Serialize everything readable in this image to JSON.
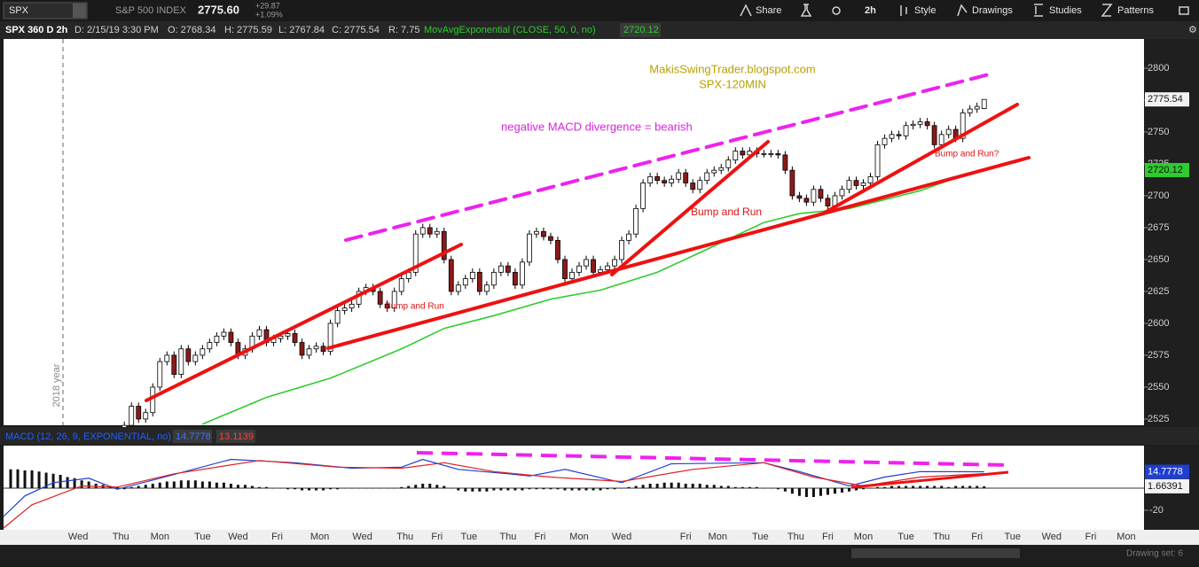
{
  "toolbar": {
    "symbol": "SPX",
    "name": "S&P 500 INDEX",
    "last": "2775.60",
    "change": "+29.87",
    "change_pct": "+1.09%",
    "buttons": [
      "Share",
      "2h",
      "Style",
      "Drawings",
      "Studies",
      "Patterns"
    ]
  },
  "info": {
    "title": "SPX 360 D 2h",
    "date": "D: 2/15/19 3:30 PM",
    "open": "O: 2768.34",
    "high": "H: 2775.59",
    "low": "L: 2767.84",
    "close": "C: 2775.54",
    "range": "R: 7.75",
    "study": "MovAvgExponential (CLOSE, 50, 0, no)",
    "study_value": "2720.12"
  },
  "chart_data": [
    {
      "type": "candlestick",
      "separator_label": "2018 year",
      "annotations": [
        "MakisSwingTrader.blogspot.com",
        "SPX-120MIN",
        "negative MACD divergence = bearish",
        "Bump and Run",
        "Bump and Run",
        "Bump and Run?"
      ],
      "up_color": "#ffffff",
      "down_color": "#8b1a1a",
      "xlim": [
        -17,
        143.5
      ],
      "xticks": [
        {
          "value": -6.5,
          "label": "Wed"
        },
        {
          "value": -0.5,
          "label": "Thu"
        },
        {
          "value": 5,
          "label": "Mon"
        },
        {
          "value": 11,
          "label": "Tue"
        },
        {
          "value": 16,
          "label": "Wed"
        },
        {
          "value": 21.5,
          "label": "Fri"
        },
        {
          "value": 27.5,
          "label": "Mon"
        },
        {
          "value": 33.5,
          "label": "Wed"
        },
        {
          "value": 39.5,
          "label": "Thu"
        },
        {
          "value": 44,
          "label": "Fri"
        },
        {
          "value": 48.5,
          "label": "Tue"
        },
        {
          "value": 54,
          "label": "Thu"
        },
        {
          "value": 58.5,
          "label": "Fri"
        },
        {
          "value": 64,
          "label": "Mon"
        },
        {
          "value": 70,
          "label": "Wed"
        },
        {
          "value": 79,
          "label": "Fri"
        },
        {
          "value": 83.5,
          "label": "Mon"
        },
        {
          "value": 89.5,
          "label": "Tue"
        },
        {
          "value": 94.5,
          "label": "Thu"
        },
        {
          "value": 99,
          "label": "Fri"
        },
        {
          "value": 104,
          "label": "Mon"
        },
        {
          "value": 110,
          "label": "Tue"
        },
        {
          "value": 115,
          "label": "Thu"
        },
        {
          "value": 120,
          "label": "Fri"
        },
        {
          "value": 125,
          "label": "Tue"
        },
        {
          "value": 130.5,
          "label": "Wed"
        },
        {
          "value": 136,
          "label": "Fri"
        },
        {
          "value": 141,
          "label": "Mon"
        }
      ],
      "ylim": [
        2520.1,
        2822.9
      ],
      "yticks": [
        2525,
        2550,
        2575,
        2600,
        2625,
        2650,
        2675,
        2700,
        2725,
        2750,
        2775,
        2800
      ],
      "last_label": {
        "value": 2775.54,
        "label": "2775.54"
      },
      "ema_label": {
        "value": 2720.12,
        "label": "2720.12"
      },
      "candles": [
        [
          2515,
          2523,
          2512,
          2520
        ],
        [
          2520,
          2538,
          2517,
          2535
        ],
        [
          2535,
          2538,
          2522,
          2525
        ],
        [
          2525,
          2533,
          2522,
          2530
        ],
        [
          2530,
          2553,
          2527,
          2550
        ],
        [
          2550,
          2573,
          2547,
          2570
        ],
        [
          2570,
          2578,
          2567,
          2575
        ],
        [
          2575,
          2578,
          2557,
          2560
        ],
        [
          2560,
          2583,
          2557,
          2580
        ],
        [
          2580,
          2583,
          2567,
          2570
        ],
        [
          2570,
          2578,
          2567,
          2575
        ],
        [
          2575,
          2583,
          2572,
          2580
        ],
        [
          2580,
          2588,
          2577,
          2585
        ],
        [
          2585,
          2593,
          2582,
          2590
        ],
        [
          2590,
          2596,
          2587,
          2593
        ],
        [
          2593,
          2596,
          2582,
          2585
        ],
        [
          2585,
          2588,
          2572,
          2575
        ],
        [
          2575,
          2583,
          2572,
          2580
        ],
        [
          2580,
          2593,
          2577,
          2590
        ],
        [
          2590,
          2598,
          2587,
          2595
        ],
        [
          2595,
          2598,
          2582,
          2585
        ],
        [
          2585,
          2591,
          2582,
          2588
        ],
        [
          2588,
          2593,
          2585,
          2590
        ],
        [
          2590,
          2595,
          2587,
          2592
        ],
        [
          2592,
          2595,
          2582,
          2585
        ],
        [
          2585,
          2588,
          2572,
          2575
        ],
        [
          2575,
          2583,
          2572,
          2580
        ],
        [
          2580,
          2585,
          2577,
          2582
        ],
        [
          2582,
          2585,
          2575,
          2578
        ],
        [
          2578,
          2603,
          2575,
          2600
        ],
        [
          2600,
          2613,
          2597,
          2610
        ],
        [
          2610,
          2615,
          2607,
          2612
        ],
        [
          2612,
          2618,
          2609,
          2615
        ],
        [
          2615,
          2628,
          2612,
          2625
        ],
        [
          2625,
          2631,
          2622,
          2628
        ],
        [
          2628,
          2631,
          2622,
          2625
        ],
        [
          2625,
          2628,
          2612,
          2615
        ],
        [
          2615,
          2618,
          2609,
          2612
        ],
        [
          2612,
          2628,
          2609,
          2625
        ],
        [
          2625,
          2638,
          2622,
          2635
        ],
        [
          2635,
          2643,
          2632,
          2640
        ],
        [
          2640,
          2673,
          2637,
          2670
        ],
        [
          2670,
          2678,
          2667,
          2675
        ],
        [
          2675,
          2678,
          2667,
          2670
        ],
        [
          2670,
          2675,
          2667,
          2672
        ],
        [
          2672,
          2675,
          2647,
          2650
        ],
        [
          2650,
          2653,
          2622,
          2625
        ],
        [
          2625,
          2633,
          2622,
          2630
        ],
        [
          2630,
          2638,
          2627,
          2635
        ],
        [
          2635,
          2643,
          2632,
          2640
        ],
        [
          2640,
          2643,
          2622,
          2625
        ],
        [
          2625,
          2633,
          2622,
          2630
        ],
        [
          2630,
          2643,
          2627,
          2640
        ],
        [
          2640,
          2648,
          2637,
          2645
        ],
        [
          2645,
          2648,
          2637,
          2640
        ],
        [
          2640,
          2643,
          2627,
          2630
        ],
        [
          2630,
          2651,
          2627,
          2648
        ],
        [
          2648,
          2673,
          2645,
          2670
        ],
        [
          2670,
          2675,
          2667,
          2672
        ],
        [
          2672,
          2675,
          2665,
          2668
        ],
        [
          2668,
          2671,
          2662,
          2665
        ],
        [
          2665,
          2668,
          2647,
          2650
        ],
        [
          2650,
          2653,
          2632,
          2635
        ],
        [
          2635,
          2643,
          2632,
          2640
        ],
        [
          2640,
          2648,
          2637,
          2645
        ],
        [
          2645,
          2653,
          2642,
          2650
        ],
        [
          2650,
          2653,
          2637,
          2640
        ],
        [
          2640,
          2645,
          2637,
          2642
        ],
        [
          2642,
          2648,
          2639,
          2645
        ],
        [
          2645,
          2653,
          2642,
          2650
        ],
        [
          2650,
          2668,
          2647,
          2665
        ],
        [
          2665,
          2673,
          2662,
          2670
        ],
        [
          2670,
          2693,
          2667,
          2690
        ],
        [
          2690,
          2713,
          2687,
          2710
        ],
        [
          2710,
          2718,
          2707,
          2715
        ],
        [
          2715,
          2718,
          2709,
          2712
        ],
        [
          2712,
          2715,
          2707,
          2710
        ],
        [
          2710,
          2716,
          2707,
          2713
        ],
        [
          2713,
          2721,
          2710,
          2718
        ],
        [
          2718,
          2721,
          2707,
          2710
        ],
        [
          2710,
          2713,
          2702,
          2705
        ],
        [
          2705,
          2715,
          2702,
          2712
        ],
        [
          2712,
          2721,
          2709,
          2718
        ],
        [
          2718,
          2723,
          2715,
          2720
        ],
        [
          2720,
          2725,
          2717,
          2722
        ],
        [
          2722,
          2731,
          2719,
          2728
        ],
        [
          2728,
          2738,
          2725,
          2735
        ],
        [
          2735,
          2738,
          2729,
          2732
        ],
        [
          2732,
          2738,
          2729,
          2735
        ],
        [
          2735,
          2738,
          2730,
          2733
        ],
        [
          2733,
          2736,
          2730,
          2733
        ],
        [
          2733,
          2736,
          2730,
          2733
        ],
        [
          2733,
          2736,
          2729,
          2732
        ],
        [
          2732,
          2735,
          2717,
          2720
        ],
        [
          2720,
          2723,
          2697,
          2700
        ],
        [
          2700,
          2703,
          2695,
          2698
        ],
        [
          2698,
          2701,
          2692,
          2695
        ],
        [
          2695,
          2708,
          2692,
          2705
        ],
        [
          2705,
          2708,
          2695,
          2698
        ],
        [
          2698,
          2701,
          2689,
          2692
        ],
        [
          2692,
          2703,
          2689,
          2700
        ],
        [
          2700,
          2708,
          2697,
          2705
        ],
        [
          2705,
          2715,
          2702,
          2712
        ],
        [
          2712,
          2715,
          2705,
          2708
        ],
        [
          2708,
          2713,
          2705,
          2710
        ],
        [
          2710,
          2718,
          2707,
          2715
        ],
        [
          2715,
          2743,
          2712,
          2740
        ],
        [
          2740,
          2748,
          2737,
          2745
        ],
        [
          2745,
          2751,
          2742,
          2748
        ],
        [
          2748,
          2751,
          2744,
          2747
        ],
        [
          2747,
          2758,
          2744,
          2755
        ],
        [
          2755,
          2759,
          2752,
          2756
        ],
        [
          2756,
          2761,
          2753,
          2758
        ],
        [
          2758,
          2761,
          2752,
          2755
        ],
        [
          2755,
          2758,
          2737,
          2740
        ],
        [
          2740,
          2751,
          2737,
          2748
        ],
        [
          2748,
          2755,
          2745,
          2752
        ],
        [
          2752,
          2755,
          2742,
          2745
        ],
        [
          2745,
          2768,
          2742,
          2765
        ],
        [
          2765,
          2771,
          2762,
          2768
        ],
        [
          2768,
          2773,
          2765,
          2770
        ],
        [
          2768.34,
          2775.59,
          2767.84,
          2775.54
        ]
      ],
      "ema": {
        "color": "#2ecc2e",
        "x": [
          11,
          20,
          29,
          39,
          45,
          52,
          60,
          67,
          75,
          82,
          90,
          95,
          102,
          107,
          112,
          117,
          121
        ],
        "values": [
          2521,
          2542,
          2557,
          2580,
          2596,
          2606,
          2619,
          2626,
          2640,
          2658,
          2679,
          2686,
          2690,
          2697,
          2704,
          2714,
          2720.12
        ]
      }
    },
    {
      "type": "macd",
      "title": "MACD (12, 26, 9, EXPONENTIAL, no)",
      "header_values": [
        "14.7778",
        "13.1139"
      ],
      "ylim": [
        -36.8,
        38.4
      ],
      "yticks": [
        -20
      ],
      "value_labels": [
        {
          "value": 14.7778,
          "label": "14.7778"
        },
        {
          "value": 1.66391,
          "label": "1.66391"
        }
      ],
      "series": [
        {
          "color": "#1f3fd1",
          "x": [
            -17,
            -14,
            -10,
            -5,
            -1,
            5,
            15,
            24,
            32,
            39,
            42,
            47,
            54,
            57,
            62,
            70,
            77,
            90,
            95,
            102,
            107,
            112,
            121
          ],
          "values": [
            -25.6,
            -7,
            5,
            9,
            -1,
            9,
            26,
            23,
            18,
            19,
            26,
            17,
            13,
            11,
            17,
            5,
            22,
            23,
            15,
            2,
            10,
            15,
            14.7778
          ]
        },
        {
          "color": "#e02020",
          "x": [
            -17,
            -13,
            -6,
            -1,
            7,
            19,
            30,
            39,
            45,
            52,
            60,
            70,
            80,
            90,
            97,
            104,
            112,
            121
          ],
          "values": [
            -36,
            -15,
            2,
            1,
            13,
            25,
            19,
            18,
            23,
            15,
            10,
            6,
            17,
            23,
            10,
            2,
            10,
            13.1139
          ]
        }
      ],
      "histogram": [
        17,
        17,
        16,
        16,
        15,
        14,
        13,
        12,
        10,
        9,
        7,
        6,
        4,
        3,
        2,
        1,
        -1,
        1,
        2,
        3,
        4,
        5,
        6,
        6,
        7,
        7,
        7,
        6,
        6,
        5,
        5,
        4,
        3,
        3,
        2,
        1,
        1,
        0,
        0,
        -1,
        -1,
        -2,
        -2,
        -2,
        -2,
        -1,
        -1,
        0,
        0,
        0,
        0,
        0,
        0,
        0,
        0,
        1,
        2,
        3,
        4,
        4,
        3,
        2,
        0,
        -2,
        -3,
        -3,
        -3,
        -3,
        -2,
        -2,
        -2,
        -2,
        -2,
        -1,
        -1,
        -1,
        -1,
        -1,
        -2,
        -2,
        -2,
        -2,
        -2,
        -2,
        -1,
        -1,
        0,
        1,
        2,
        3,
        4,
        4,
        5,
        5,
        5,
        4,
        4,
        4,
        3,
        3,
        2,
        2,
        1,
        1,
        1,
        1,
        0,
        0,
        -1,
        -3,
        -5,
        -7,
        -8,
        -8,
        -7,
        -6,
        -5,
        -4,
        -3,
        -2,
        -1,
        0,
        1,
        1,
        2,
        2,
        2,
        2,
        2,
        2,
        2,
        2,
        1,
        2,
        2,
        2,
        2,
        1.66391
      ]
    }
  ],
  "footer": {
    "drawing_set": "Drawing set: 6"
  }
}
